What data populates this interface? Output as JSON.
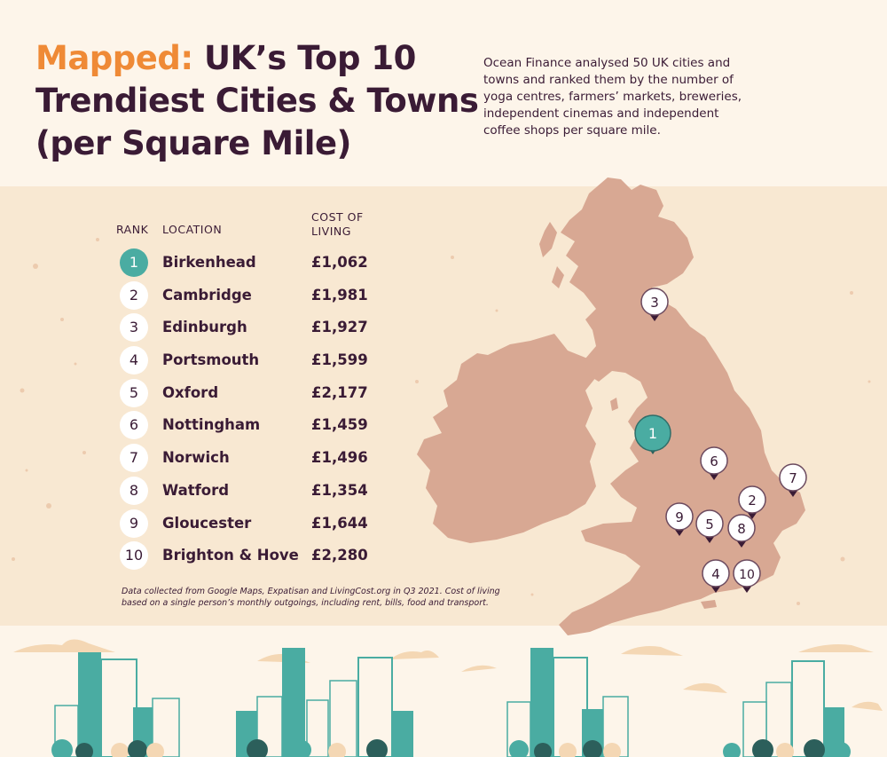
{
  "header": {
    "title_accent": "Mapped:",
    "title_line1": "UK’s Top 10",
    "title_line2": "Trendiest Cities & Towns",
    "title_line3": "(per Square Mile)",
    "intro": "Ocean Finance analysed 50 UK cities and towns and ranked them by the number of yoga centres, farmers’ markets, breweries, independent cinemas and independent coffee shops per square mile."
  },
  "table": {
    "col_rank": "RANK",
    "col_location": "LOCATION",
    "col_cost_line1": "COST OF",
    "col_cost_line2": "LIVING",
    "rows": [
      {
        "rank": "1",
        "location": "Birkenhead",
        "cost": "£1,062"
      },
      {
        "rank": "2",
        "location": "Cambridge",
        "cost": "£1,981"
      },
      {
        "rank": "3",
        "location": "Edinburgh",
        "cost": "£1,927"
      },
      {
        "rank": "4",
        "location": "Portsmouth",
        "cost": "£1,599"
      },
      {
        "rank": "5",
        "location": "Oxford",
        "cost": "£2,177"
      },
      {
        "rank": "6",
        "location": "Nottingham",
        "cost": "£1,459"
      },
      {
        "rank": "7",
        "location": "Norwich",
        "cost": "£1,496"
      },
      {
        "rank": "8",
        "location": "Watford",
        "cost": "£1,354"
      },
      {
        "rank": "9",
        "location": "Gloucester",
        "cost": "£1,644"
      },
      {
        "rank": "10",
        "location": "Brighton & Hove",
        "cost": "£2,280"
      }
    ]
  },
  "footnote": "Data collected from Google Maps, Expatisan and LivingCost.org in Q3 2021. Cost of living based on a single person’s monthly outgoings, including rent, bills, food and transport.",
  "map": {
    "markers": [
      {
        "rank": "1",
        "location": "Birkenhead"
      },
      {
        "rank": "2",
        "location": "Cambridge"
      },
      {
        "rank": "3",
        "location": "Edinburgh"
      },
      {
        "rank": "4",
        "location": "Portsmouth"
      },
      {
        "rank": "5",
        "location": "Oxford"
      },
      {
        "rank": "6",
        "location": "Nottingham"
      },
      {
        "rank": "7",
        "location": "Norwich"
      },
      {
        "rank": "8",
        "location": "Watford"
      },
      {
        "rank": "9",
        "location": "Gloucester"
      },
      {
        "rank": "10",
        "location": "Brighton & Hove"
      }
    ]
  },
  "colors": {
    "accent_orange": "#ef8a36",
    "text_plum": "#3a1b35",
    "teal": "#4aaca2",
    "land": "#d8a893",
    "background": "#fbf1e2"
  }
}
